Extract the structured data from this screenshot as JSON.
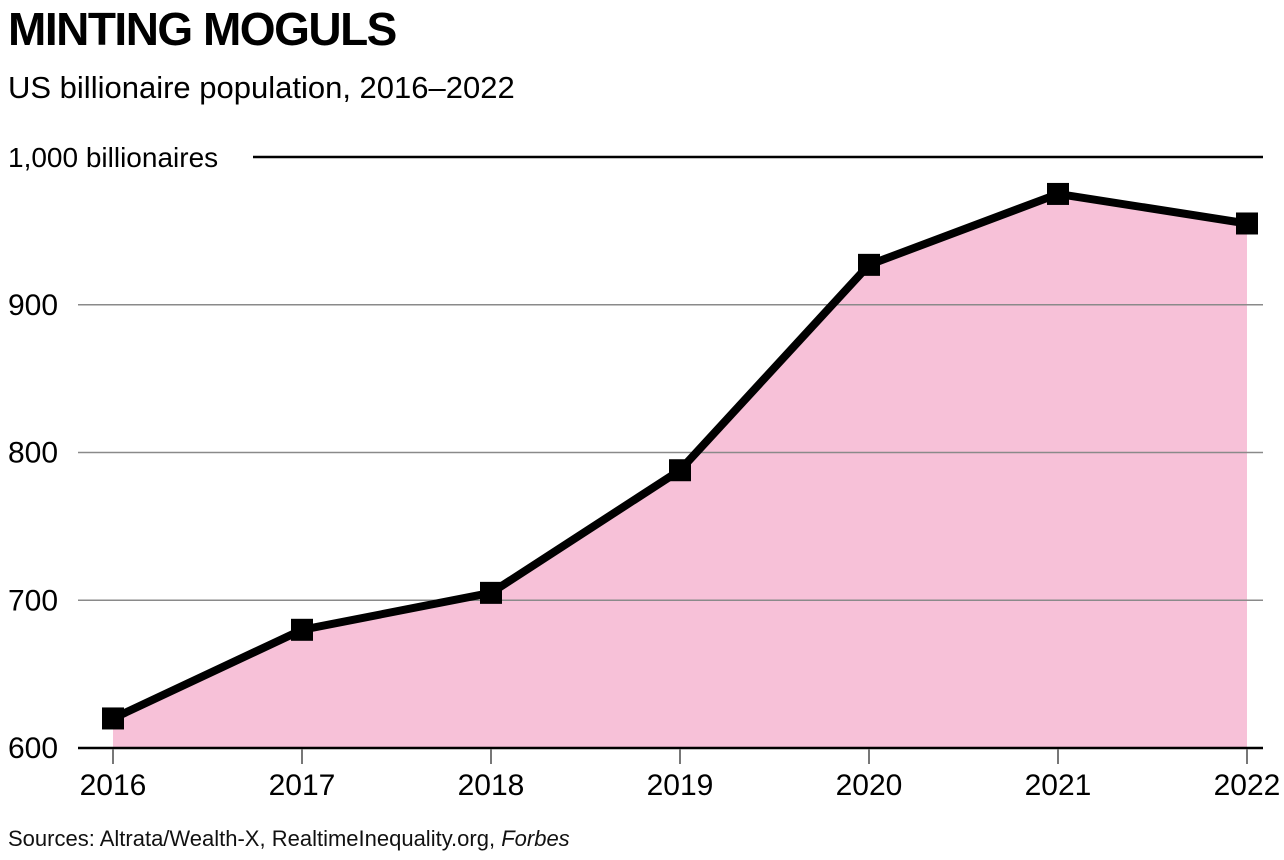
{
  "header": {
    "title": "MINTING MOGULS",
    "subtitle": "US billionaire population, 2016–2022"
  },
  "footer": {
    "sources_prefix": "Sources: Altrata/Wealth-X, RealtimeInequality.org, ",
    "sources_italic": "Forbes"
  },
  "chart_data": {
    "type": "area",
    "title": "MINTING MOGULS",
    "subtitle": "US billionaire population, 2016–2022",
    "x": [
      2016,
      2017,
      2018,
      2019,
      2020,
      2021,
      2022
    ],
    "x_tick_labels": [
      "2016",
      "2017",
      "2018",
      "2019",
      "2020",
      "2021",
      "2022"
    ],
    "series": [
      {
        "name": "US billionaire population",
        "values": [
          620,
          680,
          705,
          788,
          927,
          975,
          955
        ]
      }
    ],
    "ylim": [
      600,
      1000
    ],
    "y_ticks": [
      600,
      700,
      800,
      900,
      1000
    ],
    "y_tick_labels": [
      "600",
      "700",
      "800",
      "900",
      "1,000 billionaires"
    ],
    "grid": true,
    "legend": false,
    "marker": "square",
    "colors": {
      "fill": "#f7c1d8",
      "line": "#000000",
      "grid": "#8a8a8a",
      "axis": "#000000",
      "tick": "#777777"
    }
  }
}
